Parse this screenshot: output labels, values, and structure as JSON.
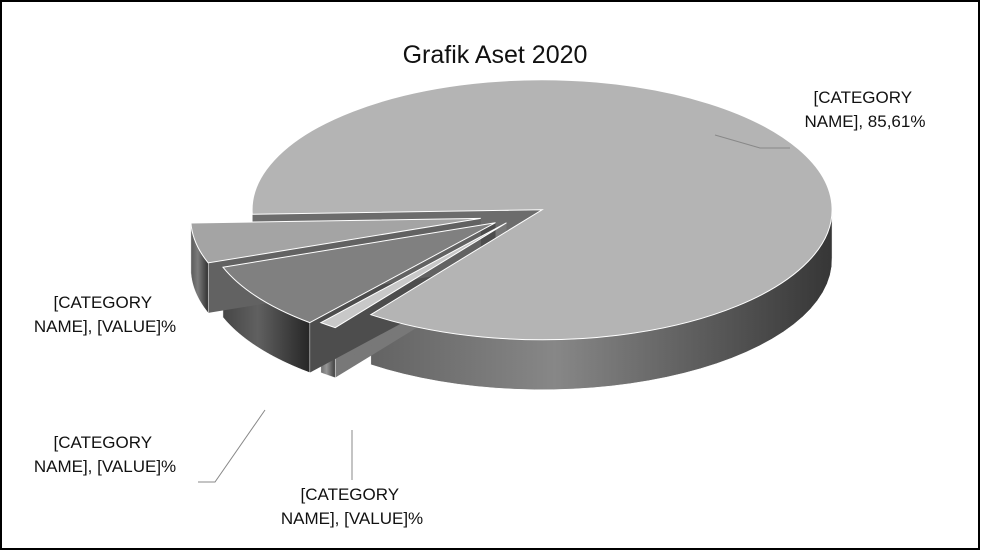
{
  "chart_data": {
    "type": "pie",
    "title": "Grafik Aset 2020",
    "categories": [
      "[CATEGORY NAME]",
      "[CATEGORY NAME]",
      "[CATEGORY NAME]",
      "[CATEGORY NAME]"
    ],
    "values": [
      85.61,
      1.0,
      8.39,
      5.0
    ],
    "value_labels": [
      "[CATEGORY NAME], 85,61%",
      "[CATEGORY NAME], [VALUE]%",
      "[CATEGORY NAME], [VALUE]%",
      "[CATEGORY NAME], [VALUE]%"
    ],
    "colors": [
      "#b4b4b4",
      "#c8c8c8",
      "#808080",
      "#a4a4a4"
    ]
  }
}
